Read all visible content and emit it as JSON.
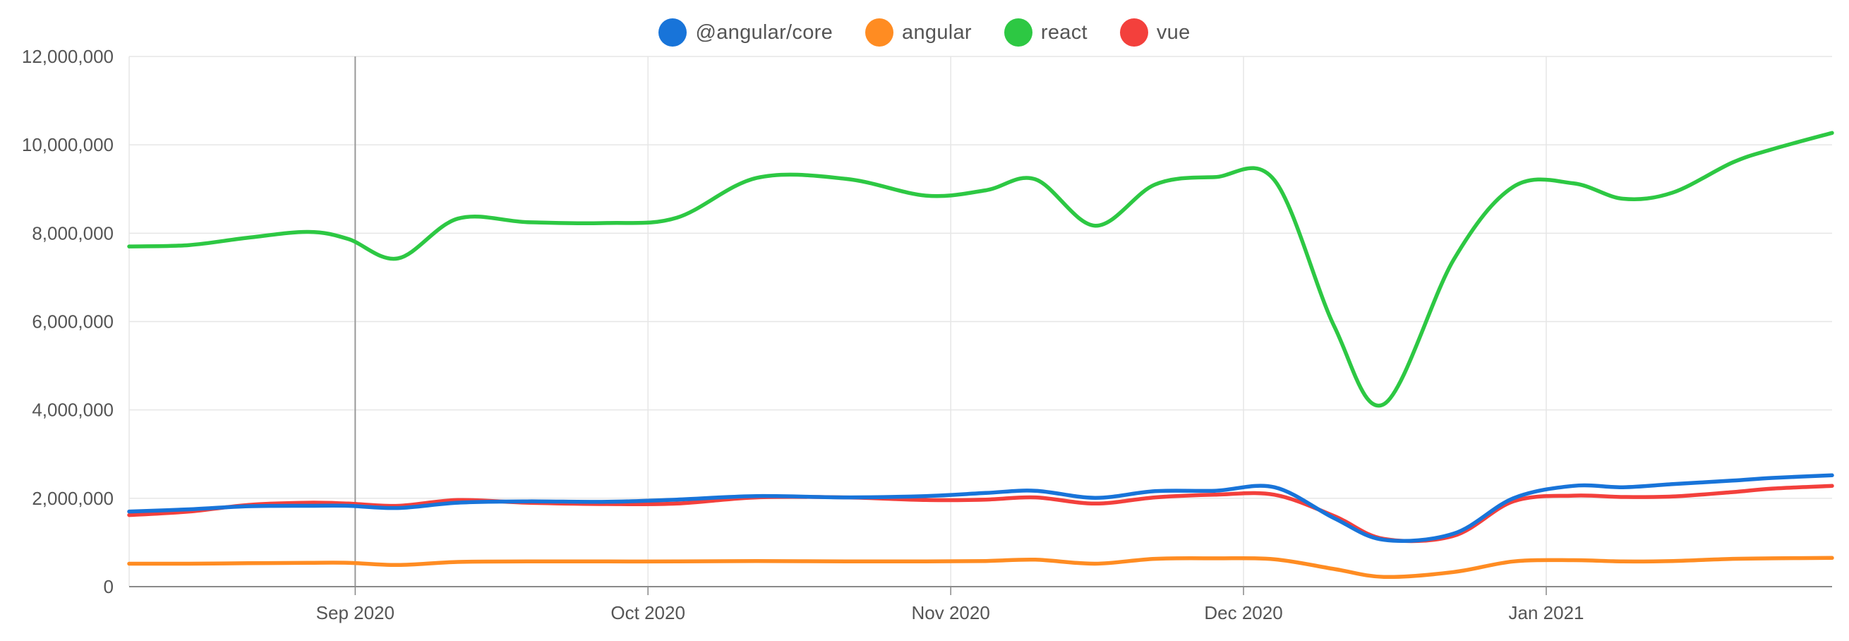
{
  "chart_data": {
    "type": "line",
    "title": "",
    "xlabel": "",
    "ylabel": "",
    "ylim": [
      0,
      12000000
    ],
    "yticks": [
      0,
      2000000,
      4000000,
      6000000,
      8000000,
      10000000,
      12000000
    ],
    "ytick_labels": [
      "0",
      "2,000,000",
      "4,000,000",
      "6,000,000",
      "8,000,000",
      "10,000,000",
      "12,000,000"
    ],
    "xlim": [
      0,
      171
    ],
    "xticks": [
      {
        "t": 22.7,
        "label": "Sep 2020"
      },
      {
        "t": 52.1,
        "label": "Oct 2020"
      },
      {
        "t": 82.5,
        "label": "Nov 2020"
      },
      {
        "t": 111.9,
        "label": "Dec 2020"
      },
      {
        "t": 142.3,
        "label": "Jan 2021"
      }
    ],
    "highlight_line_t": 22.7,
    "x": [
      0,
      6,
      12,
      18,
      22,
      27,
      33,
      40,
      48,
      55,
      63,
      72,
      80,
      86,
      91,
      97,
      103,
      109,
      115,
      121,
      126,
      133,
      139,
      145,
      150,
      155,
      161,
      165,
      171
    ],
    "series": [
      {
        "name": "@angular/core",
        "color": "#1874D9",
        "values": [
          1700000,
          1750000,
          1820000,
          1830000,
          1830000,
          1780000,
          1900000,
          1930000,
          1920000,
          1970000,
          2050000,
          2020000,
          2050000,
          2120000,
          2170000,
          2010000,
          2160000,
          2170000,
          2250000,
          1550000,
          1060000,
          1200000,
          2000000,
          2280000,
          2250000,
          2320000,
          2400000,
          2460000,
          2520000
        ]
      },
      {
        "name": "angular",
        "color": "#FF8C22",
        "values": [
          520000,
          520000,
          530000,
          540000,
          540000,
          490000,
          560000,
          570000,
          570000,
          570000,
          580000,
          570000,
          570000,
          580000,
          610000,
          520000,
          630000,
          640000,
          620000,
          400000,
          220000,
          330000,
          570000,
          600000,
          570000,
          580000,
          630000,
          640000,
          650000
        ]
      },
      {
        "name": "react",
        "color": "#2DC843",
        "values": [
          7700000,
          7730000,
          7900000,
          8030000,
          7870000,
          7430000,
          8330000,
          8250000,
          8230000,
          8350000,
          9250000,
          9230000,
          8850000,
          8970000,
          9220000,
          8170000,
          9100000,
          9270000,
          9200000,
          5900000,
          4130000,
          7400000,
          9050000,
          9130000,
          8780000,
          8920000,
          9600000,
          9900000,
          10270000
        ]
      },
      {
        "name": "vue",
        "color": "#F3403C",
        "values": [
          1620000,
          1700000,
          1850000,
          1900000,
          1880000,
          1830000,
          1960000,
          1900000,
          1870000,
          1880000,
          2020000,
          2020000,
          1960000,
          1970000,
          2020000,
          1880000,
          2020000,
          2080000,
          2080000,
          1600000,
          1080000,
          1150000,
          1930000,
          2060000,
          2030000,
          2040000,
          2140000,
          2220000,
          2280000
        ]
      }
    ]
  }
}
